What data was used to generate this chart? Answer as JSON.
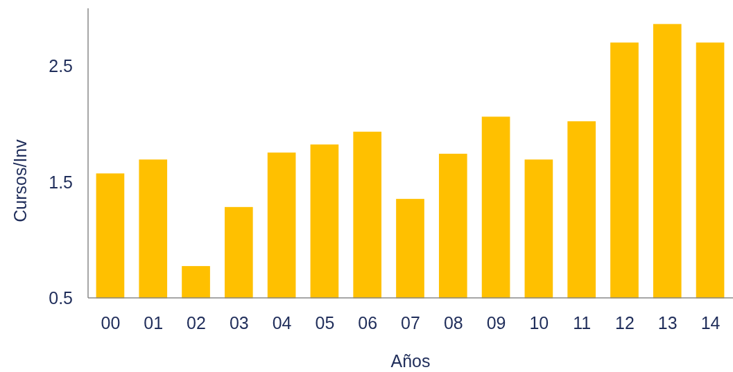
{
  "chart_data": {
    "type": "bar",
    "xlabel": "Años",
    "ylabel": "Cursos/Inv",
    "categories": [
      "00",
      "01",
      "02",
      "03",
      "04",
      "05",
      "06",
      "07",
      "08",
      "09",
      "10",
      "11",
      "12",
      "13",
      "14"
    ],
    "series": [
      {
        "color": "#ffc000",
        "values": [
          1.57,
          1.69,
          0.77,
          1.28,
          1.75,
          1.82,
          1.93,
          1.35,
          1.74,
          2.06,
          1.69,
          2.02,
          2.7,
          2.86,
          2.7
        ]
      }
    ],
    "ylim": [
      0.5,
      3.0
    ],
    "yticks": [
      0.5,
      1.5,
      2.5
    ]
  }
}
